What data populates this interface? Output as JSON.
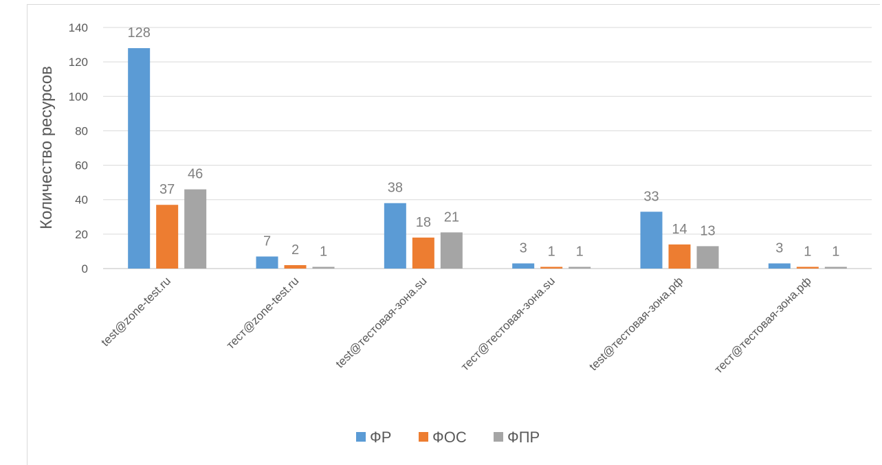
{
  "chart_data": {
    "type": "bar",
    "categories": [
      "test@zone-test.ru",
      "тест@zone-test.ru",
      "test@тестовая-зона.su",
      "тест@тестовая-зона.su",
      "test@тестовая-зона.рф",
      "тест@тестовая-зона.рф"
    ],
    "series": [
      {
        "name": "ФР",
        "color": "#5b9bd5",
        "values": [
          128,
          7,
          38,
          3,
          33,
          3
        ]
      },
      {
        "name": "ФОС",
        "color": "#ed7d31",
        "values": [
          37,
          2,
          18,
          1,
          14,
          1
        ]
      },
      {
        "name": "ФПР",
        "color": "#a5a5a5",
        "values": [
          46,
          1,
          21,
          1,
          13,
          1
        ]
      }
    ],
    "title": "",
    "xlabel": "",
    "ylabel": "Количество ресурсов",
    "ylim": [
      0,
      140
    ],
    "yticks": [
      0,
      20,
      40,
      60,
      80,
      100,
      120,
      140
    ],
    "grid": true,
    "legend_position": "bottom",
    "data_labels": true
  }
}
